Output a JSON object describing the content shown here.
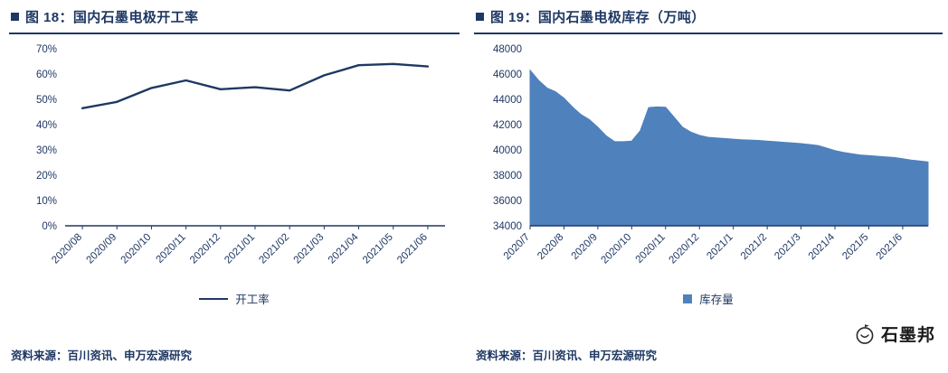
{
  "page": {
    "footer_logo_text": "石墨邦"
  },
  "chart_data": [
    {
      "id": "operating-rate",
      "type": "line",
      "title": "图 18：国内石墨电极开工率",
      "source": "资料来源：百川资讯、申万宏源研究",
      "categories": [
        "2020/08",
        "2020/09",
        "2020/10",
        "2020/11",
        "2020/12",
        "2021/01",
        "2021/02",
        "2021/03",
        "2021/04",
        "2021/05",
        "2021/06"
      ],
      "series": [
        {
          "name": "开工率",
          "values": [
            46.5,
            49,
            54.5,
            57.5,
            54,
            54.8,
            53.5,
            59.5,
            63.5,
            64,
            63
          ]
        }
      ],
      "ylim": [
        0,
        70
      ],
      "ytick_step": 10,
      "ytick_suffix": "%",
      "line_color": "#1f3864",
      "axis_color": "#1f3864",
      "legend_position": "bottom",
      "grid": false
    },
    {
      "id": "inventory",
      "type": "area",
      "title": "图 19：国内石墨电极库存（万吨）",
      "source": "资料来源：百川资讯、申万宏源研究",
      "categories": [
        "2020/7",
        "2020/8",
        "2020/9",
        "2020/10",
        "2020/11",
        "2020/12",
        "2021/1",
        "2021/2",
        "2021/3",
        "2021/4",
        "2021/5",
        "2021/6"
      ],
      "series": [
        {
          "name": "库存量",
          "values": [
            46300,
            45500,
            44900,
            44600,
            44100,
            43400,
            42800,
            42400,
            41800,
            41100,
            40650,
            40650,
            40700,
            41500,
            43350,
            43400,
            43380,
            42600,
            41800,
            41400,
            41150,
            41000,
            40950,
            40900,
            40850,
            40800,
            40780,
            40750,
            40700,
            40650,
            40600,
            40550,
            40500,
            40430,
            40350,
            40150,
            39950,
            39800,
            39700,
            39600,
            39550,
            39500,
            39450,
            39400,
            39300,
            39200,
            39120,
            39050
          ]
        }
      ],
      "ylim": [
        34000,
        48000
      ],
      "ytick_step": 2000,
      "ytick_suffix": "",
      "fill_color": "#4f81bd",
      "axis_color": "#1f3864",
      "legend_position": "bottom",
      "grid": false
    }
  ]
}
